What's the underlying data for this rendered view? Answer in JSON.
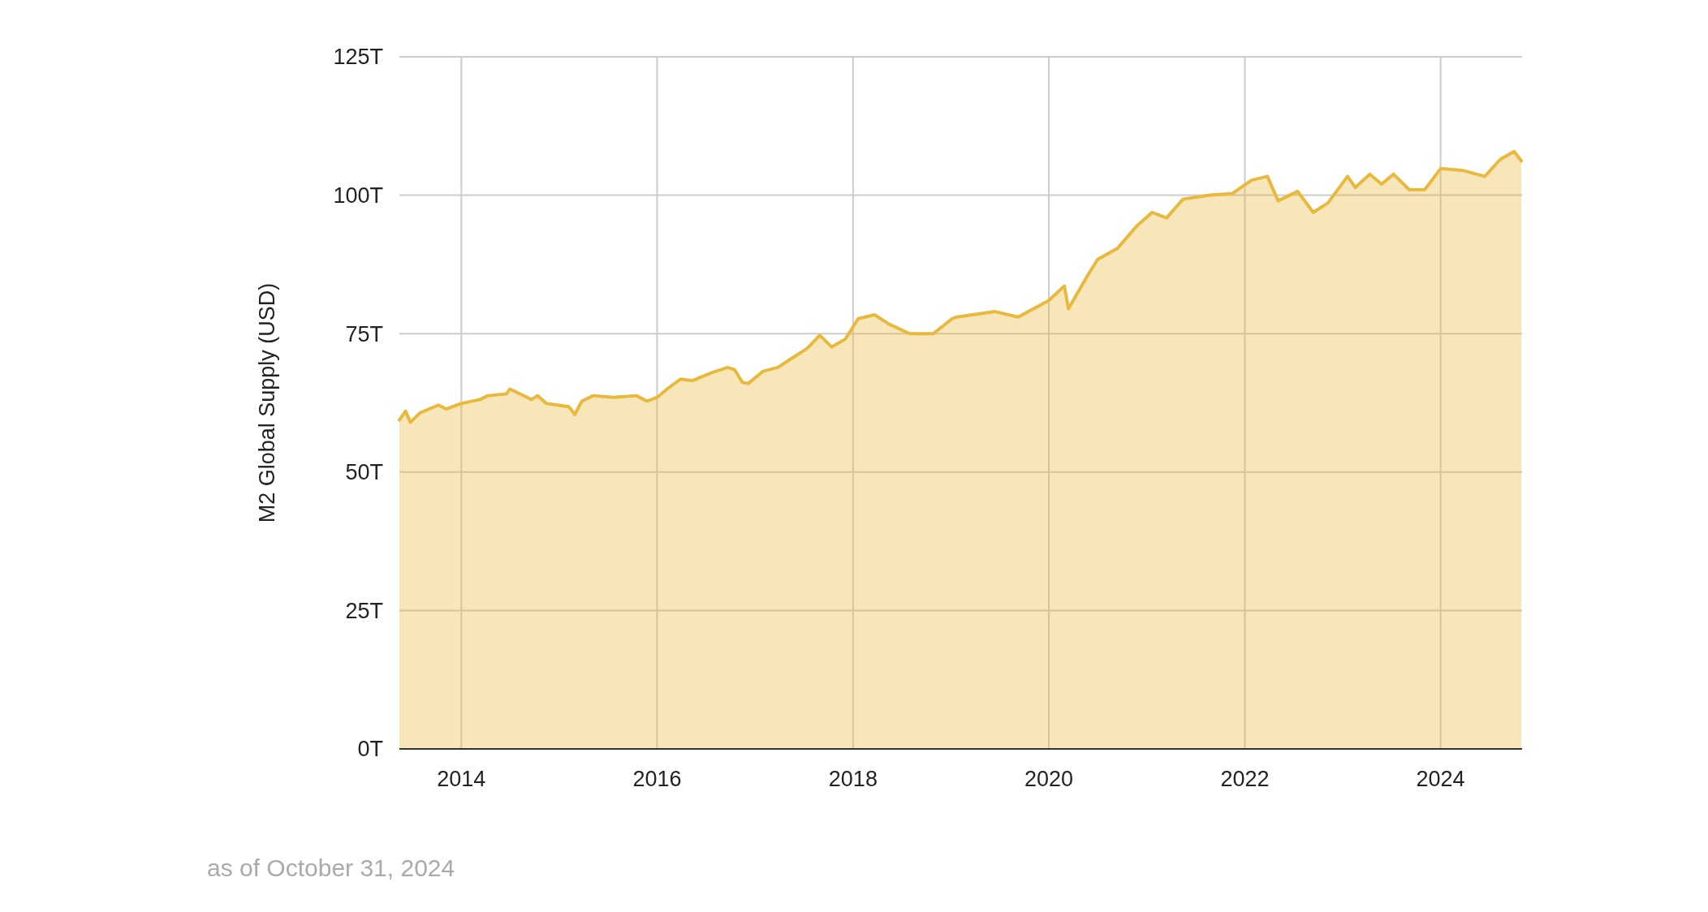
{
  "chart_data": {
    "type": "area",
    "ylabel": "M2 Global Supply (USD)",
    "annotations": [
      "as of October 31, 2024"
    ],
    "x": [
      "2013-05-15",
      "2013-06-07",
      "2013-06-25",
      "2013-07-31",
      "2013-10-07",
      "2013-11-06",
      "2014-01-01",
      "2014-03-12",
      "2014-04-10",
      "2014-06-18",
      "2014-07-01",
      "2014-09-20",
      "2014-10-12",
      "2014-11-14",
      "2015-02-06",
      "2015-02-28",
      "2015-03-26",
      "2015-05-08",
      "2015-07-24",
      "2015-10-16",
      "2015-11-25",
      "2016-01-01",
      "2016-02-10",
      "2016-03-29",
      "2016-05-12",
      "2016-07-20",
      "2016-09-20",
      "2016-10-16",
      "2016-11-14",
      "2016-12-06",
      "2017-01-30",
      "2017-03-26",
      "2017-05-19",
      "2017-07-13",
      "2017-08-30",
      "2017-10-13",
      "2017-12-03",
      "2018-01-20",
      "2018-03-22",
      "2018-05-16",
      "2018-07-31",
      "2018-10-27",
      "2019-01-05",
      "2019-01-23",
      "2019-06-13",
      "2019-09-09",
      "2020-01-01",
      "2020-02-28",
      "2020-03-14",
      "2020-05-22",
      "2020-07-01",
      "2020-09-13",
      "2020-11-25",
      "2021-01-20",
      "2021-03-15",
      "2021-05-16",
      "2021-08-23",
      "2021-11-15",
      "2022-01-26",
      "2022-03-26",
      "2022-05-05",
      "2022-07-17",
      "2022-09-13",
      "2022-11-07",
      "2023-01-19",
      "2023-02-17",
      "2023-04-12",
      "2023-05-26",
      "2023-07-09",
      "2023-09-06",
      "2023-11-03",
      "2024-01-01",
      "2024-03-22",
      "2024-06-14",
      "2024-08-11",
      "2024-10-01",
      "2024-10-28"
    ],
    "series": [
      {
        "color": "#e8b93c",
        "values": [
          59.4,
          61,
          59,
          60.7,
          62.1,
          61.4,
          62.4,
          63.1,
          63.8,
          64.1,
          65,
          63.1,
          63.8,
          62.4,
          61.8,
          60.4,
          62.8,
          63.8,
          63.5,
          63.8,
          62.8,
          63.5,
          65.1,
          66.8,
          66.5,
          67.9,
          68.9,
          68.5,
          66.2,
          66,
          68.2,
          68.9,
          70.6,
          72.3,
          74.7,
          72.6,
          74,
          77.7,
          78.4,
          76.7,
          75,
          75,
          77.7,
          78,
          79,
          78,
          81,
          83.6,
          79.5,
          85.3,
          88.4,
          90.4,
          94.5,
          96.9,
          95.9,
          99.3,
          100,
          100.3,
          102.7,
          103.4,
          99,
          100.7,
          96.9,
          98.6,
          103.4,
          101.4,
          103.8,
          102,
          103.8,
          101,
          101,
          104.8,
          104.5,
          103.4,
          106.5,
          107.9,
          106.2
        ]
      }
    ],
    "xlim": [
      "2013-05-15",
      "2024-10-31"
    ],
    "xticks": [
      {
        "value": "2014-01-01",
        "label": "2014"
      },
      {
        "value": "2016-01-01",
        "label": "2016"
      },
      {
        "value": "2018-01-01",
        "label": "2018"
      },
      {
        "value": "2020-01-01",
        "label": "2020"
      },
      {
        "value": "2022-01-01",
        "label": "2022"
      },
      {
        "value": "2024-01-01",
        "label": "2024"
      }
    ],
    "ylim": [
      0,
      125
    ],
    "yticks": [
      {
        "value": 0,
        "label": "0T"
      },
      {
        "value": 25,
        "label": "25T"
      },
      {
        "value": 50,
        "label": "50T"
      },
      {
        "value": 75,
        "label": "75T"
      },
      {
        "value": 100,
        "label": "100T"
      },
      {
        "value": 125,
        "label": "125T"
      }
    ],
    "grid": true
  }
}
